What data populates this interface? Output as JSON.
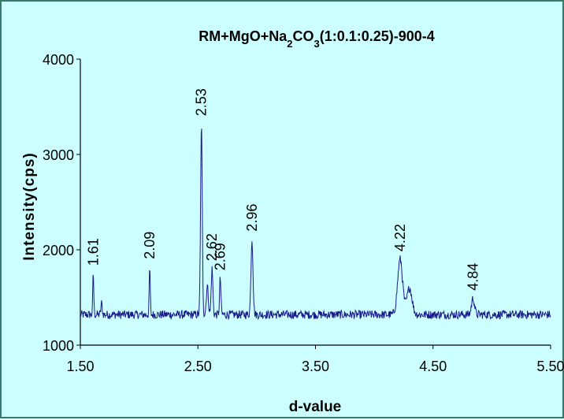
{
  "chart_data": {
    "type": "line",
    "title": "RM+MgO+Na2CO3(1:0.1:0.25)-900-4",
    "title_parts": [
      "RM+MgO+Na",
      "2",
      "CO",
      "3",
      "(1:0.1:0.25)-900-4"
    ],
    "xlabel": "d-value",
    "ylabel": "Intensity(cps)",
    "xlim": [
      1.5,
      5.5
    ],
    "ylim": [
      1000,
      4000
    ],
    "x_ticks": [
      "1.50",
      "2.50",
      "3.50",
      "4.50",
      "5.50"
    ],
    "y_ticks": [
      "1000",
      "2000",
      "3000",
      "4000"
    ],
    "grid": false,
    "baseline": 1320,
    "series": [
      {
        "color": "#1a1a8c",
        "peaks": [
          {
            "x": 1.61,
            "y": 1750,
            "w": 0.006,
            "label": "1.61"
          },
          {
            "x": 1.68,
            "y": 1440,
            "w": 0.008
          },
          {
            "x": 2.09,
            "y": 1820,
            "w": 0.006,
            "label": "2.09"
          },
          {
            "x": 2.53,
            "y": 3320,
            "w": 0.01,
            "label": "2.53"
          },
          {
            "x": 2.58,
            "y": 1620,
            "w": 0.012
          },
          {
            "x": 2.62,
            "y": 1800,
            "w": 0.01,
            "label": "2.62"
          },
          {
            "x": 2.69,
            "y": 1700,
            "w": 0.008,
            "label": "2.69"
          },
          {
            "x": 2.96,
            "y": 2110,
            "w": 0.012,
            "label": "2.96"
          },
          {
            "x": 4.22,
            "y": 1900,
            "w": 0.03,
            "label": "4.22"
          },
          {
            "x": 4.3,
            "y": 1600,
            "w": 0.03
          },
          {
            "x": 4.84,
            "y": 1490,
            "w": 0.018,
            "label": "4.84"
          }
        ]
      }
    ]
  }
}
